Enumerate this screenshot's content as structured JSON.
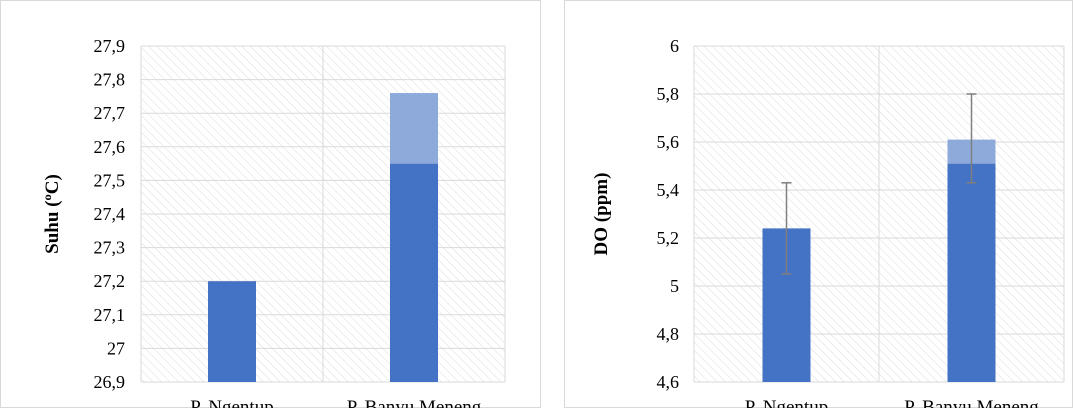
{
  "chart_data": [
    {
      "type": "bar",
      "title": "",
      "xlabel": "",
      "ylabel": "Suhu (ºC)",
      "categories": [
        "P. Ngentup",
        "P. Banyu Meneng"
      ],
      "values": [
        27.2,
        27.55
      ],
      "error_bars": [
        null,
        {
          "low": 27.55,
          "high": 27.76
        }
      ],
      "ylim": [
        26.9,
        27.9
      ],
      "yticks": [
        "26,9",
        "27",
        "27,1",
        "27,2",
        "27,3",
        "27,4",
        "27,5",
        "27,6",
        "27,7",
        "27,8",
        "27,9"
      ],
      "grid": true,
      "colors": {
        "bar": "#4472c4",
        "error_band": "#8eaadb",
        "grid": "#d9d9d9",
        "hatch": "#dcdcdc"
      }
    },
    {
      "type": "bar",
      "title": "",
      "xlabel": "",
      "ylabel": "DO (ppm)",
      "categories": [
        "P. Ngentup",
        "P. Banyu Meneng"
      ],
      "values": [
        5.24,
        5.51
      ],
      "error_bars": [
        {
          "low": 5.05,
          "high": 5.43
        },
        {
          "low": 5.43,
          "high": 5.8
        }
      ],
      "highlight_top": [
        null,
        5.61
      ],
      "ylim": [
        4.6,
        6.0
      ],
      "yticks": [
        "4,6",
        "4,8",
        "5",
        "5,2",
        "5,4",
        "5,6",
        "5,8",
        "6"
      ],
      "grid": true,
      "colors": {
        "bar": "#4472c4",
        "error_band": "#8eaadb",
        "error_line": "#7f7f7f",
        "grid": "#d9d9d9",
        "hatch": "#dcdcdc"
      }
    }
  ]
}
